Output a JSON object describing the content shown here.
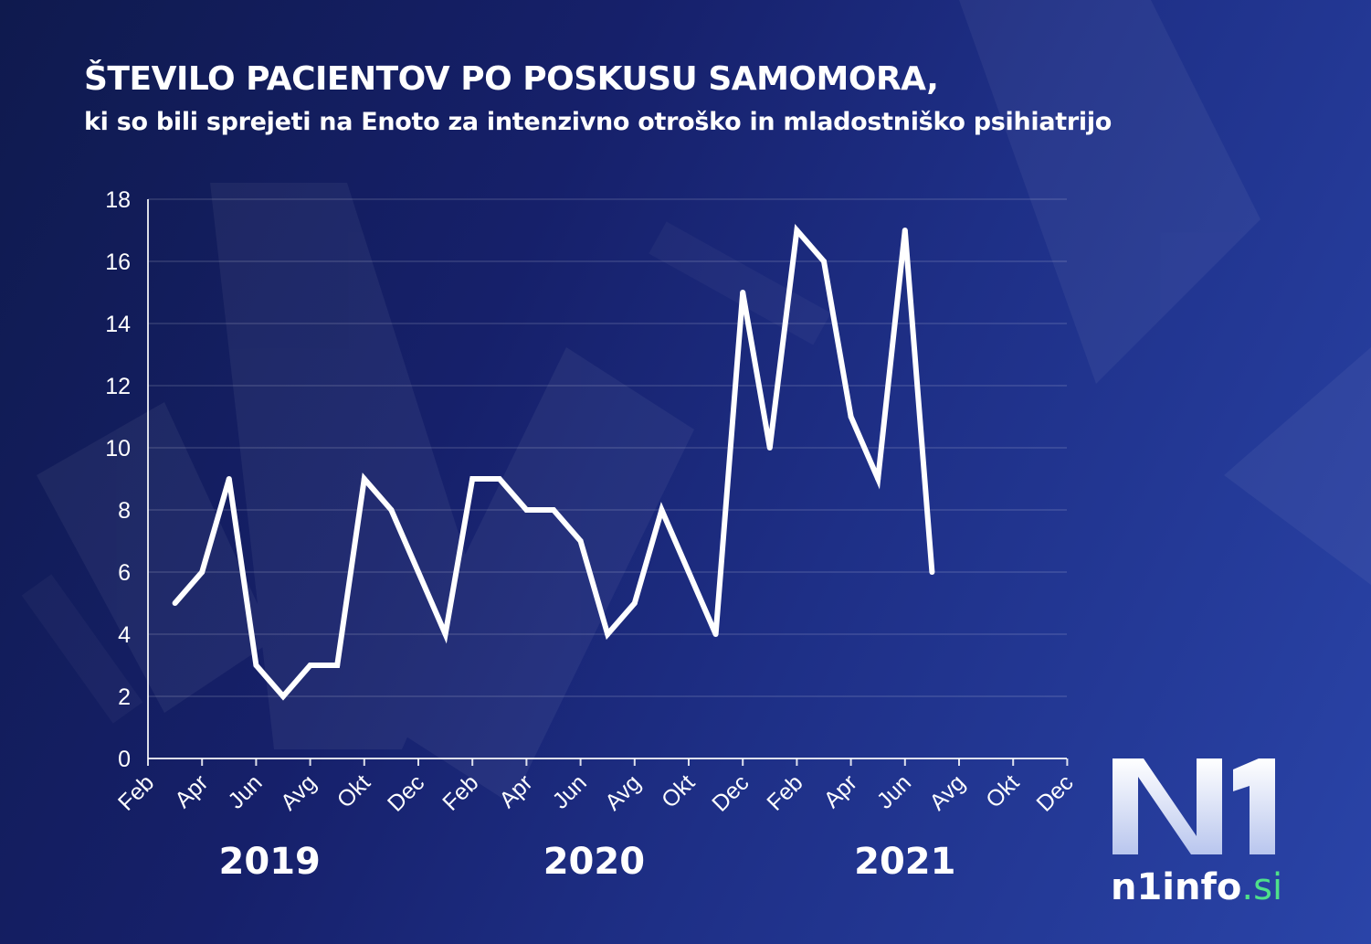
{
  "title": "ŠTEVILO PACIENTOV PO POSKUSU SAMOMORA,",
  "subtitle": "ki so bili sprejeti na Enoto za intenzivno otroško in mladostniško psihiatrijo",
  "chart_data": {
    "type": "line",
    "title": "ŠTEVILO PACIENTOV PO POSKUSU SAMOMORA,",
    "subtitle": "ki so bili sprejeti na Enoto za intenzivno otroško in mladostniško psihiatrijo",
    "ylim": [
      0,
      18
    ],
    "yticks": [
      0,
      2,
      4,
      6,
      8,
      10,
      12,
      14,
      16,
      18
    ],
    "grid": true,
    "xtick_labels": [
      "Feb",
      "Apr",
      "Jun",
      "Avg",
      "Okt",
      "Dec",
      "Feb",
      "Apr",
      "Jun",
      "Avg",
      "Okt",
      "Dec",
      "Feb",
      "Apr",
      "Jun",
      "Avg",
      "Okt",
      "Dec"
    ],
    "years": [
      "2019",
      "2020",
      "2021"
    ],
    "line_color": "#ffffff",
    "series": [
      {
        "x": [
          "2019-03",
          "2019-04",
          "2019-05",
          "2019-06",
          "2019-07",
          "2019-08",
          "2019-09",
          "2019-10",
          "2019-11",
          "2019-12",
          "2020-01",
          "2020-02",
          "2020-03",
          "2020-04",
          "2020-05",
          "2020-06",
          "2020-07",
          "2020-08",
          "2020-09",
          "2020-10",
          "2020-11",
          "2020-12",
          "2021-01",
          "2021-02",
          "2021-03",
          "2021-04",
          "2021-05",
          "2021-06",
          "2021-07"
        ],
        "values": [
          5,
          6,
          9,
          3,
          2,
          3,
          3,
          9,
          8,
          6,
          4,
          9,
          9,
          8,
          8,
          7,
          4,
          5,
          8,
          6,
          4,
          15,
          10,
          17,
          16,
          11,
          9,
          17,
          6
        ]
      }
    ]
  },
  "logo": {
    "mark": "N1",
    "wordmark": "n1info",
    "wordmark_accent": ".si",
    "accent_color": "#4fe08a"
  }
}
